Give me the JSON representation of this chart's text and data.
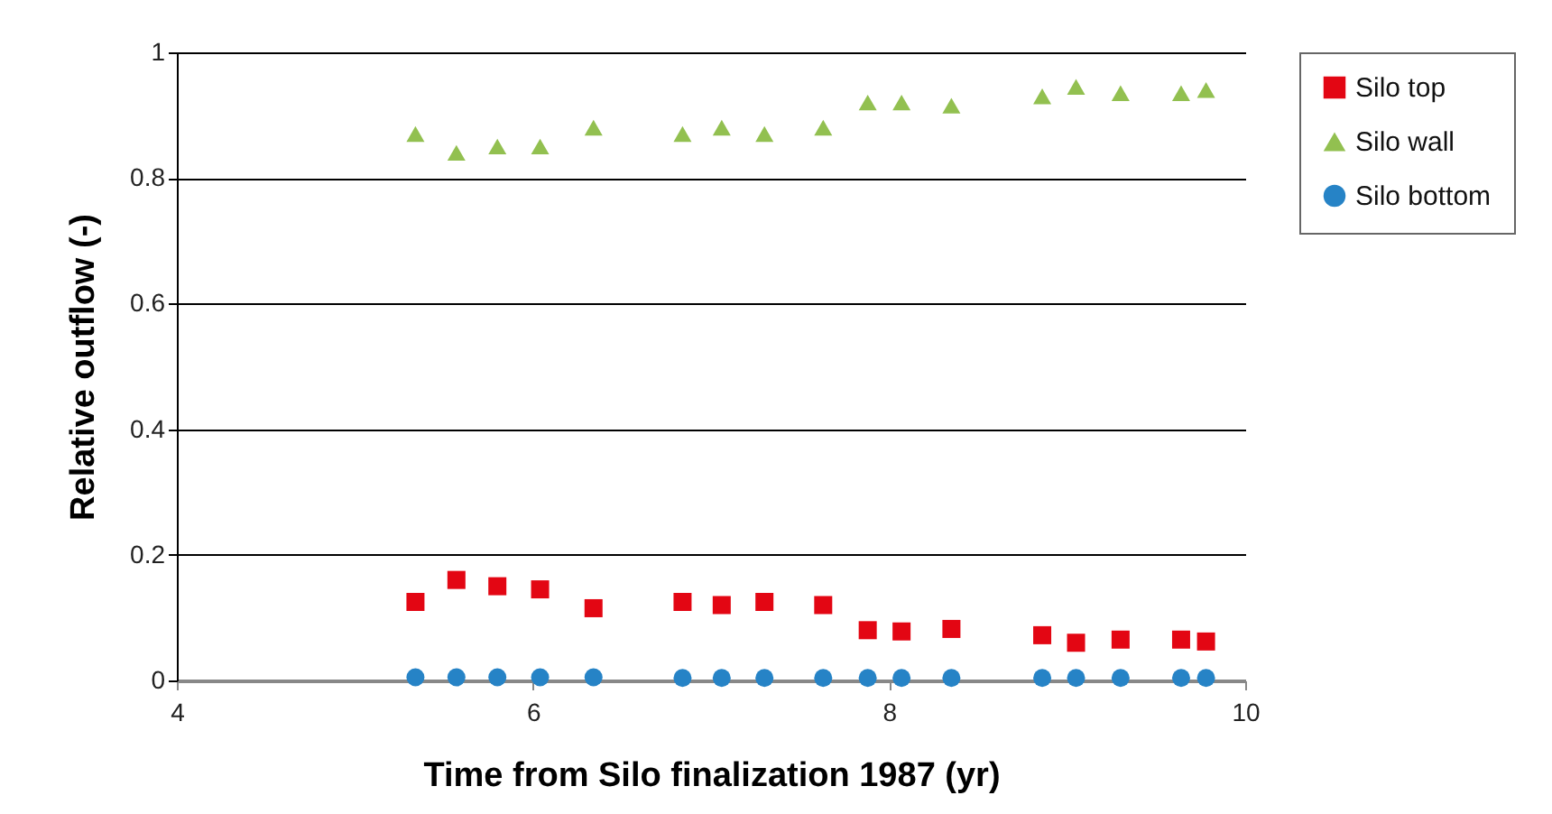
{
  "chart_data": {
    "type": "scatter",
    "xlabel": "Time from Silo finalization 1987 (yr)",
    "ylabel": "Relative outflow (-)",
    "x": [
      5.34,
      5.57,
      5.8,
      6.04,
      6.34,
      6.84,
      7.06,
      7.3,
      7.63,
      7.88,
      8.07,
      8.35,
      8.86,
      9.05,
      9.3,
      9.64,
      9.78
    ],
    "series": [
      {
        "name": "Silo top",
        "color": "#e30613",
        "marker": "square",
        "values": [
          0.125,
          0.16,
          0.15,
          0.145,
          0.115,
          0.125,
          0.12,
          0.125,
          0.12,
          0.08,
          0.078,
          0.082,
          0.072,
          0.06,
          0.065,
          0.065,
          0.062
        ]
      },
      {
        "name": "Silo wall",
        "color": "#92c050",
        "marker": "triangle",
        "values": [
          0.87,
          0.84,
          0.85,
          0.85,
          0.88,
          0.87,
          0.88,
          0.87,
          0.88,
          0.92,
          0.92,
          0.915,
          0.93,
          0.945,
          0.935,
          0.935,
          0.94
        ]
      },
      {
        "name": "Silo bottom",
        "color": "#2683c6",
        "marker": "circle",
        "values": [
          0.005,
          0.005,
          0.005,
          0.005,
          0.005,
          0.004,
          0.004,
          0.004,
          0.004,
          0.004,
          0.004,
          0.004,
          0.004,
          0.004,
          0.004,
          0.004,
          0.004
        ]
      }
    ],
    "xlim": [
      4,
      10
    ],
    "xticks": [
      4,
      6,
      8,
      10
    ],
    "ylim": [
      0,
      1
    ],
    "yticks": [
      0,
      0.2,
      0.4,
      0.6,
      0.8,
      1
    ],
    "grid": "y",
    "legend": "right"
  }
}
